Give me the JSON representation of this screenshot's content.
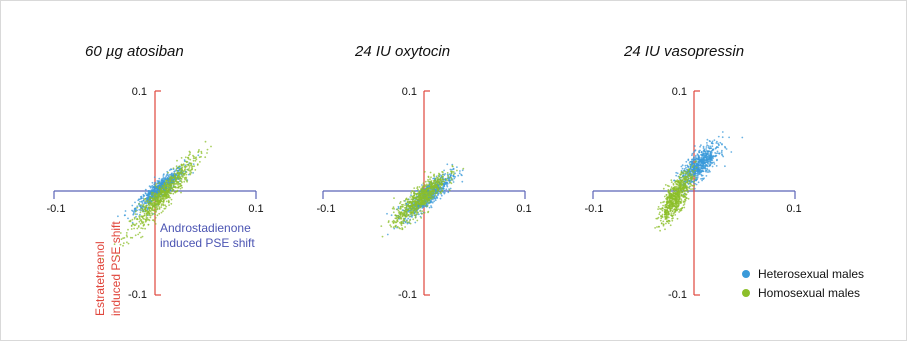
{
  "chart_data": [
    {
      "type": "scatter",
      "title": "60 µg atosiban",
      "xlabel": "Androstadienone induced PSE shift",
      "ylabel": "Estratetraenol induced PSE shift",
      "xlabel_lines": [
        "Androstadienone",
        "induced PSE shift"
      ],
      "ylabel_lines": [
        "Estratetraenol",
        "induced PSE shift"
      ],
      "xlim": [
        -0.1,
        0.1
      ],
      "ylim": [
        -0.1,
        0.1
      ],
      "x_ticks": [
        "-0.1",
        "0.1"
      ],
      "y_ticks": [
        "0.1",
        "-0.1"
      ],
      "series": [
        {
          "name": "Heterosexual males",
          "color": "#3a9ad9",
          "center": [
            0.005,
            0.002
          ],
          "spread": [
            0.012,
            0.006
          ],
          "corr": 0.6
        },
        {
          "name": "Homosexual males",
          "color": "#8cbf2a",
          "center": [
            0.008,
            -0.004
          ],
          "spread": [
            0.016,
            0.01
          ],
          "corr": 0.75
        }
      ]
    },
    {
      "type": "scatter",
      "title": "24 IU oxytocin",
      "xlim": [
        -0.1,
        0.1
      ],
      "ylim": [
        -0.1,
        0.1
      ],
      "x_ticks": [
        "-0.1",
        "0.1"
      ],
      "y_ticks": [
        "0.1",
        "-0.1"
      ],
      "series": [
        {
          "name": "Heterosexual males",
          "color": "#3a9ad9",
          "center": [
            0.004,
            -0.004
          ],
          "spread": [
            0.012,
            0.007
          ],
          "corr": 0.55
        },
        {
          "name": "Homosexual males",
          "color": "#8cbf2a",
          "center": [
            -0.004,
            -0.008
          ],
          "spread": [
            0.013,
            0.008
          ],
          "corr": 0.6
        }
      ]
    },
    {
      "type": "scatter",
      "title": "24 IU vasopressin",
      "xlim": [
        -0.1,
        0.1
      ],
      "ylim": [
        -0.1,
        0.1
      ],
      "x_ticks": [
        "-0.1",
        "0.1"
      ],
      "y_ticks": [
        "0.1",
        "-0.1"
      ],
      "series": [
        {
          "name": "Heterosexual males",
          "color": "#3a9ad9",
          "center": [
            0.005,
            0.025
          ],
          "spread": [
            0.01,
            0.008
          ],
          "corr": 0.5
        },
        {
          "name": "Homosexual males",
          "color": "#8cbf2a",
          "center": [
            -0.018,
            -0.006
          ],
          "spread": [
            0.008,
            0.01
          ],
          "corr": 0.6
        }
      ]
    }
  ],
  "legend": [
    {
      "label": "Heterosexual males",
      "color": "#3a9ad9"
    },
    {
      "label": "Homosexual males",
      "color": "#8cbf2a"
    }
  ],
  "colors": {
    "x_axis": "#5b63b7",
    "y_axis": "#e0463c",
    "x_label": "#4c55b3",
    "y_label": "#e0463c"
  }
}
